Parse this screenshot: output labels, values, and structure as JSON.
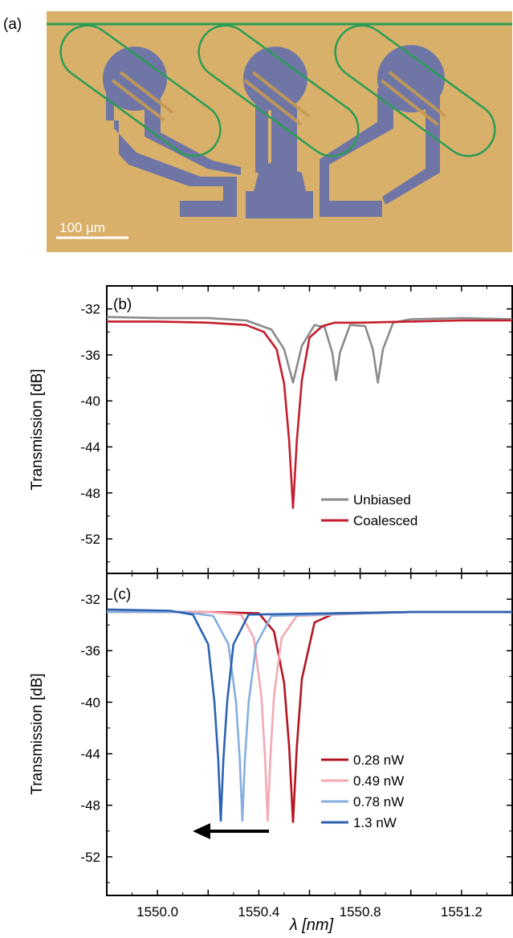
{
  "panel_a": {
    "label": "(a)",
    "scale_bar_label": "100 µm",
    "colors": {
      "substrate": "#d8b06a",
      "electrode": "#6f76a6",
      "waveguide": "#2a9d55",
      "heater": "#c79a52"
    }
  },
  "chart_data": [
    {
      "type": "line",
      "panel_label": "(b)",
      "xlabel": "",
      "ylabel": "Transmission [dB]",
      "xlim": [
        1549.8,
        1551.4
      ],
      "ylim": [
        -55,
        -30
      ],
      "yticks": [
        -32,
        -36,
        -40,
        -44,
        -48,
        -52
      ],
      "legend_position": "bottom-right",
      "series": [
        {
          "name": "Unbiased",
          "color": "#8a8a8a",
          "x": [
            1549.8,
            1550.0,
            1550.2,
            1550.35,
            1550.45,
            1550.5,
            1550.535,
            1550.57,
            1550.62,
            1550.66,
            1550.69,
            1550.705,
            1550.72,
            1550.76,
            1550.82,
            1550.85,
            1550.87,
            1550.89,
            1550.93,
            1551.0,
            1551.2,
            1551.4
          ],
          "y": [
            -32.7,
            -32.8,
            -32.8,
            -33.0,
            -33.8,
            -35.5,
            -38.4,
            -35.2,
            -33.4,
            -33.6,
            -35.8,
            -38.2,
            -35.8,
            -33.4,
            -33.5,
            -35.5,
            -38.4,
            -35.5,
            -33.2,
            -32.9,
            -32.8,
            -32.9
          ]
        },
        {
          "name": "Coalesced",
          "color": "#c41e2e",
          "x": [
            1549.8,
            1550.0,
            1550.2,
            1550.35,
            1550.42,
            1550.47,
            1550.5,
            1550.52,
            1550.535,
            1550.55,
            1550.57,
            1550.6,
            1550.65,
            1550.7,
            1550.8,
            1551.0,
            1551.2,
            1551.4
          ],
          "y": [
            -33.1,
            -33.1,
            -33.2,
            -33.4,
            -34.0,
            -35.5,
            -38.5,
            -43.5,
            -49.3,
            -43.5,
            -38.2,
            -34.5,
            -33.5,
            -33.2,
            -33.2,
            -33.1,
            -33.0,
            -33.0
          ]
        }
      ]
    },
    {
      "type": "line",
      "panel_label": "(c)",
      "xlabel": "λ [nm]",
      "ylabel": "Transmission [dB]",
      "xlim": [
        1549.8,
        1551.4
      ],
      "ylim": [
        -55,
        -30
      ],
      "xticks": [
        1550.0,
        1550.4,
        1550.8,
        1551.2
      ],
      "yticks": [
        -32,
        -36,
        -40,
        -44,
        -48,
        -52
      ],
      "legend_position": "bottom-right",
      "annotation": "arrow pointing to shorter wavelength",
      "series": [
        {
          "name": "0.28 nW",
          "color": "#b3141f",
          "x": [
            1549.8,
            1550.2,
            1550.4,
            1550.46,
            1550.5,
            1550.52,
            1550.535,
            1550.55,
            1550.57,
            1550.62,
            1550.7,
            1551.0,
            1551.4
          ],
          "y": [
            -33.0,
            -33.0,
            -33.1,
            -34.5,
            -38.5,
            -43.5,
            -49.3,
            -43.5,
            -38.2,
            -33.8,
            -33.1,
            -33.0,
            -33.0
          ]
        },
        {
          "name": "0.49 nW",
          "color": "#f4a8b4",
          "x": [
            1549.8,
            1550.2,
            1550.33,
            1550.38,
            1550.41,
            1550.425,
            1550.435,
            1550.445,
            1550.46,
            1550.49,
            1550.55,
            1551.0,
            1551.4
          ],
          "y": [
            -33.0,
            -33.0,
            -33.2,
            -35.0,
            -39.5,
            -44.5,
            -49.2,
            -44.5,
            -39.5,
            -35.0,
            -33.3,
            -33.0,
            -33.0
          ]
        },
        {
          "name": "0.78 nW",
          "color": "#86aee0",
          "x": [
            1549.8,
            1550.1,
            1550.22,
            1550.28,
            1550.31,
            1550.325,
            1550.335,
            1550.345,
            1550.36,
            1550.39,
            1550.45,
            1551.0,
            1551.4
          ],
          "y": [
            -33.0,
            -33.0,
            -33.3,
            -35.5,
            -40.0,
            -44.5,
            -49.2,
            -44.5,
            -40.0,
            -35.5,
            -33.3,
            -33.0,
            -33.0
          ]
        },
        {
          "name": "1.3 nW",
          "color": "#2d62b0",
          "x": [
            1549.8,
            1550.05,
            1550.14,
            1550.2,
            1550.225,
            1550.24,
            1550.25,
            1550.26,
            1550.275,
            1550.3,
            1550.36,
            1551.0,
            1551.4
          ],
          "y": [
            -32.8,
            -32.9,
            -33.2,
            -35.5,
            -40.0,
            -44.5,
            -49.2,
            -44.5,
            -40.0,
            -35.5,
            -33.2,
            -33.0,
            -33.0
          ]
        }
      ]
    }
  ]
}
